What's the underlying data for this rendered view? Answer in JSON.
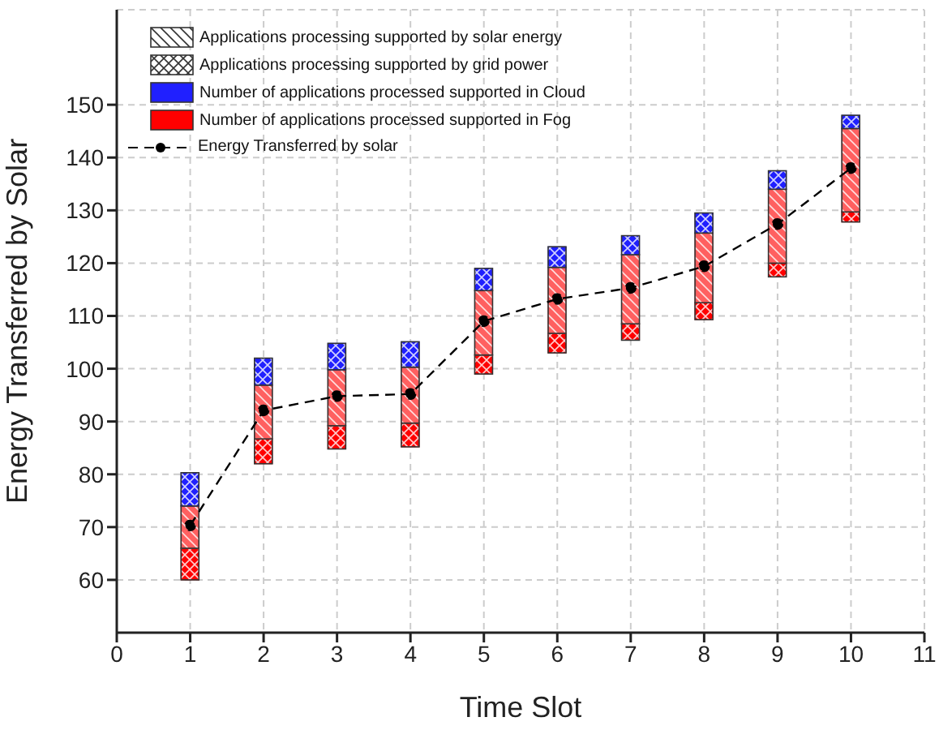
{
  "chart_data": {
    "type": "bar",
    "xlabel": "Time Slot",
    "ylabel": "Energy Transferred by Solar",
    "x": [
      1,
      2,
      3,
      4,
      5,
      6,
      7,
      8,
      9,
      10
    ],
    "xlim": [
      0,
      11
    ],
    "xticks": [
      0,
      1,
      2,
      3,
      4,
      5,
      6,
      7,
      8,
      9,
      10,
      11
    ],
    "ylim": [
      50,
      168
    ],
    "yticks": [
      60,
      70,
      80,
      90,
      100,
      110,
      120,
      130,
      140,
      150
    ],
    "series": [
      {
        "color": "#ff0000",
        "base": [
          60,
          82,
          84.8,
          85.2,
          99,
          103,
          105.4,
          109.3,
          117.4,
          127.8
        ],
        "values": [
          6,
          4.7,
          4.4,
          4.5,
          3.6,
          3.7,
          3.1,
          3.2,
          2.6,
          1.9
        ]
      },
      {
        "color": "#ff6060",
        "base": [
          66,
          86.7,
          89.2,
          89.7,
          102.6,
          106.7,
          108.5,
          112.5,
          120,
          129.7
        ],
        "values": [
          8,
          10.2,
          10.6,
          10.6,
          12.2,
          12.5,
          13.1,
          13.2,
          14,
          15.8
        ]
      },
      {
        "color": "#2020ff",
        "base": [
          74,
          96.9,
          99.8,
          100.3,
          114.8,
          119.2,
          121.6,
          125.7,
          134,
          145.5
        ],
        "values": [
          6.3,
          5.1,
          5,
          4.8,
          4.2,
          3.9,
          3.6,
          3.8,
          3.5,
          2.5
        ]
      },
      {
        "name": "Energy Transferred by solar",
        "type": "line",
        "color": "#000000",
        "values": [
          70.3,
          92.1,
          94.8,
          95.2,
          109,
          113.2,
          115.3,
          119.4,
          127.4,
          138
        ]
      }
    ],
    "annotations": [
      "Applications processing supported by solar energy",
      "Applications processing supported by grid power",
      "Number of applications processed supported in Cloud",
      "Number of applications processed supported in Fog"
    ],
    "marker": "circle",
    "line_style": "dashed",
    "grid": true,
    "legend": "top left"
  }
}
